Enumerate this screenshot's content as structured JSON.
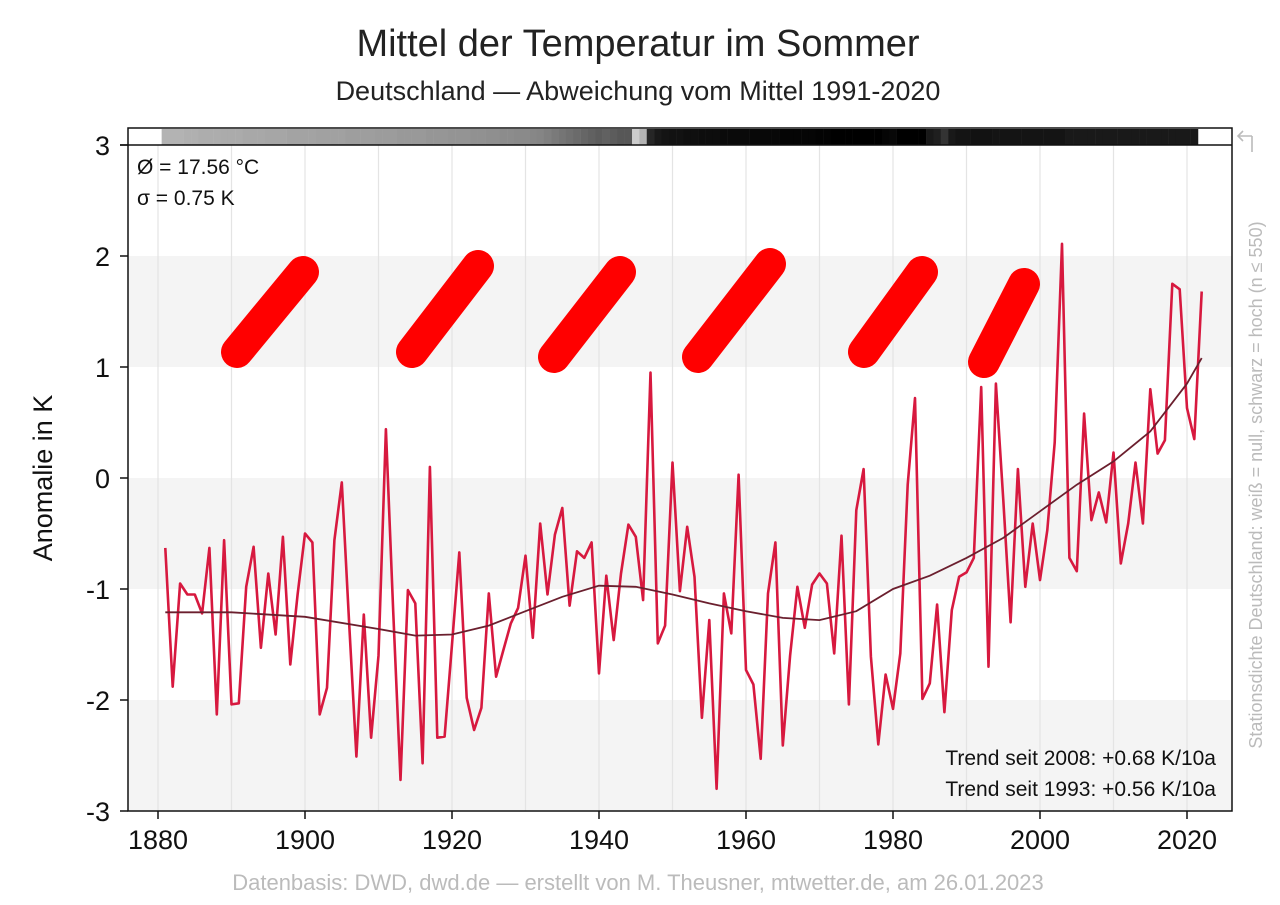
{
  "chart_data": {
    "type": "line",
    "title": "Mittel der Temperatur im Sommer",
    "subtitle": "Deutschland — Abweichung vom Mittel 1991-2020",
    "ylabel": "Anomalie in K",
    "xlabel": "",
    "xlim": [
      1876,
      2027
    ],
    "ylim": [
      -3,
      3
    ],
    "x_ticks": [
      1880,
      1900,
      1920,
      1940,
      1960,
      1980,
      2000,
      2020
    ],
    "y_ticks": [
      3,
      2,
      1,
      0,
      -1,
      -2,
      -3
    ],
    "grid": "vertical lines every 10 years, alternating horizontal bands",
    "colors": {
      "series": "#d7193f",
      "trend": "#6b1f2e",
      "band": "#f4f4f4",
      "annotation": "#ff0000"
    },
    "series": [
      {
        "start_year": 1881,
        "values": [
          -0.63,
          -1.88,
          -0.95,
          -1.05,
          -1.05,
          -1.22,
          -0.63,
          -2.13,
          -0.56,
          -2.04,
          -2.03,
          -0.98,
          -0.62,
          -1.53,
          -0.86,
          -1.41,
          -0.53,
          -1.68,
          -1.05,
          -0.5,
          -0.58,
          -2.13,
          -1.89,
          -0.56,
          -0.04,
          -1.3,
          -2.51,
          -1.23,
          -2.34,
          -1.6,
          0.44,
          -1.2,
          -2.72,
          -1.01,
          -1.13,
          -2.57,
          0.1,
          -2.34,
          -2.33,
          -1.5,
          -0.67,
          -1.98,
          -2.27,
          -2.07,
          -1.04,
          -1.79,
          -1.55,
          -1.31,
          -1.17,
          -0.7,
          -1.44,
          -0.41,
          -1.05,
          -0.51,
          -0.27,
          -1.15,
          -0.66,
          -0.72,
          -0.58,
          -1.76,
          -0.88,
          -1.46,
          -0.86,
          -0.42,
          -0.53,
          -1.1,
          0.95,
          -1.49,
          -1.33,
          0.14,
          -1.02,
          -0.44,
          -0.89,
          -2.16,
          -1.28,
          -2.8,
          -1.04,
          -1.4,
          0.03,
          -1.73,
          -1.86,
          -2.53,
          -1.04,
          -0.58,
          -2.41,
          -1.6,
          -0.98,
          -1.35,
          -0.96,
          -0.86,
          -0.95,
          -1.58,
          -0.52,
          -2.04,
          -0.29,
          0.08,
          -1.61,
          -2.4,
          -1.77,
          -2.08,
          -1.58,
          -0.06,
          0.72,
          -1.99,
          -1.85,
          -1.14,
          -2.11,
          -1.19,
          -0.89,
          -0.85,
          -0.72,
          0.82,
          -1.7,
          0.85,
          -0.2,
          -1.3,
          0.08,
          -0.98,
          -0.41,
          -0.92,
          -0.47,
          0.32,
          2.11,
          -0.72,
          -0.84,
          0.58,
          -0.38,
          -0.13,
          -0.4,
          0.23,
          -0.77,
          -0.41,
          0.14,
          -0.41,
          0.8,
          0.22,
          0.34,
          1.75,
          1.7,
          0.63,
          0.35,
          1.68
        ]
      },
      {
        "smoothed": true,
        "years": [
          1881,
          1890,
          1900,
          1910,
          1915,
          1920,
          1925,
          1930,
          1935,
          1940,
          1945,
          1950,
          1955,
          1960,
          1965,
          1970,
          1975,
          1980,
          1985,
          1990,
          1995,
          2000,
          2005,
          2010,
          2015,
          2020,
          2022
        ],
        "values": [
          -1.21,
          -1.21,
          -1.25,
          -1.36,
          -1.42,
          -1.41,
          -1.33,
          -1.2,
          -1.07,
          -0.97,
          -0.98,
          -1.05,
          -1.13,
          -1.2,
          -1.26,
          -1.28,
          -1.2,
          -1.0,
          -0.88,
          -0.72,
          -0.54,
          -0.3,
          -0.06,
          0.15,
          0.42,
          0.85,
          1.08
        ]
      }
    ],
    "station_density": {
      "start_year": 1881,
      "values": [
        0.3,
        0.3,
        0.3,
        0.31,
        0.31,
        0.32,
        0.32,
        0.32,
        0.33,
        0.33,
        0.33,
        0.34,
        0.34,
        0.34,
        0.35,
        0.35,
        0.35,
        0.36,
        0.36,
        0.36,
        0.36,
        0.37,
        0.37,
        0.37,
        0.37,
        0.38,
        0.38,
        0.38,
        0.38,
        0.39,
        0.39,
        0.39,
        0.4,
        0.4,
        0.4,
        0.4,
        0.41,
        0.41,
        0.41,
        0.42,
        0.42,
        0.42,
        0.43,
        0.43,
        0.44,
        0.44,
        0.45,
        0.45,
        0.46,
        0.46,
        0.47,
        0.48,
        0.5,
        0.52,
        0.54,
        0.56,
        0.58,
        0.6,
        0.62,
        0.64,
        0.62,
        0.64,
        0.66,
        0.66,
        0.2,
        0.3,
        0.85,
        0.9,
        0.92,
        0.93,
        0.93,
        0.94,
        0.94,
        0.95,
        0.95,
        0.95,
        0.96,
        0.96,
        0.96,
        0.96,
        0.97,
        0.97,
        0.97,
        0.97,
        0.98,
        0.98,
        0.98,
        0.98,
        0.98,
        0.99,
        0.99,
        1.0,
        1.0,
        1.0,
        1.0,
        1.0,
        1.0,
        1.0,
        0.98,
        0.97,
        1.0,
        1.0,
        1.0,
        1.0,
        0.9,
        0.88,
        0.8,
        0.9,
        0.92,
        0.92,
        0.93,
        0.93,
        0.93,
        0.92,
        0.92,
        0.92,
        0.92,
        0.92,
        0.92,
        0.92,
        0.92,
        0.92,
        0.92,
        0.9,
        0.9,
        0.9,
        0.9,
        0.9,
        0.9,
        0.9,
        0.9,
        0.9,
        0.9,
        0.9,
        0.9,
        0.9,
        0.9,
        0.9,
        0.9,
        0.9,
        0.9
      ]
    },
    "stats": {
      "mean": "Ø = 17.56 °C",
      "sigma": "σ = 0.75 K"
    },
    "annotations": [
      "Trend seit 2008: +0.68 K/10a",
      "Trend seit 1993: +0.56 K/10a"
    ],
    "density_label": "Stationsdichte Deutschland: weiß = null, schwarz = hoch (n ≤ 550)",
    "source": "Datenbasis: DWD, dwd.de — erstellt von M. Theusner, mtwetter.de, am 26.01.2023"
  }
}
